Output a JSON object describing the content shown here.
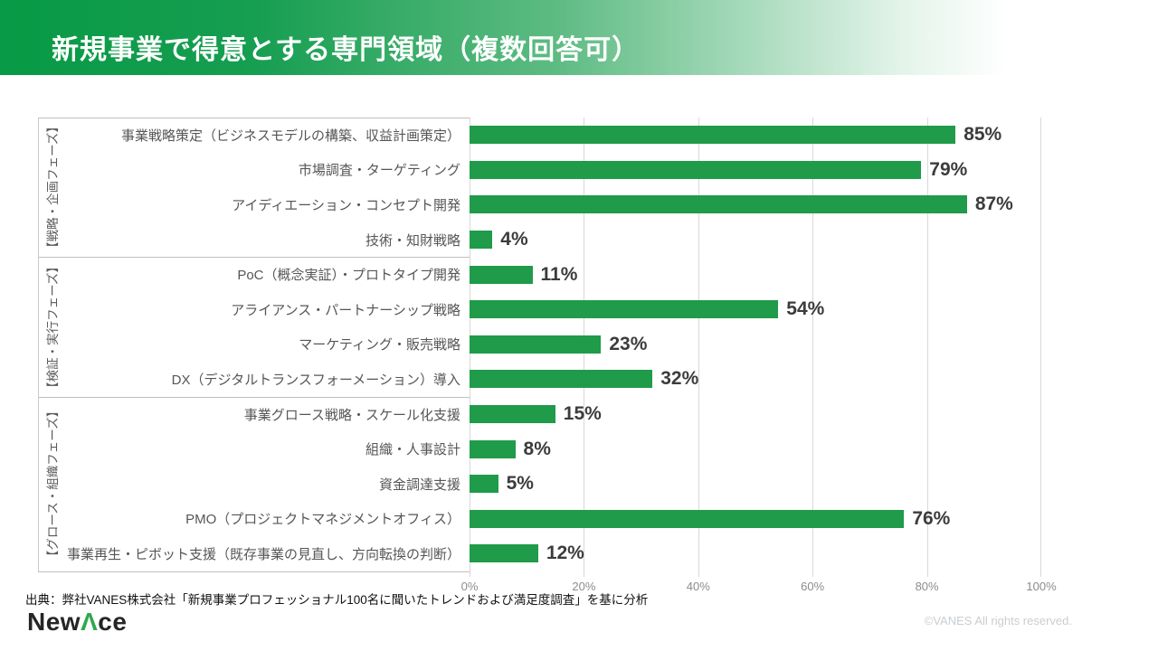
{
  "header": {
    "title": "新規事業で得意とする専門領域（複数回答可）"
  },
  "chart_data": {
    "type": "bar",
    "orientation": "horizontal",
    "title": "新規事業で得意とする専門領域（複数回答可）",
    "unit": "%",
    "xlim": [
      0,
      100
    ],
    "x_ticks": [
      {
        "label": "0%",
        "value": 0
      },
      {
        "label": "20%",
        "value": 20
      },
      {
        "label": "40%",
        "value": 40
      },
      {
        "label": "60%",
        "value": 60
      },
      {
        "label": "80%",
        "value": 80
      },
      {
        "label": "100%",
        "value": 100
      }
    ],
    "grid": true,
    "bar_color": "#1f9b49",
    "groups": [
      {
        "label": "【戦略・企画フェーズ】",
        "items": [
          {
            "label": "事業戦略策定（ビジネスモデルの構築、収益計画策定）",
            "value": 85
          },
          {
            "label": "市場調査・ターゲティング",
            "value": 79
          },
          {
            "label": "アイディエーション・コンセプト開発",
            "value": 87
          },
          {
            "label": "技術・知財戦略",
            "value": 4
          }
        ]
      },
      {
        "label": "【検証・実行フェーズ】",
        "items": [
          {
            "label": "PoC（概念実証）・プロトタイプ開発",
            "value": 11
          },
          {
            "label": "アライアンス・パートナーシップ戦略",
            "value": 54
          },
          {
            "label": "マーケティング・販売戦略",
            "value": 23
          },
          {
            "label": "DX（デジタルトランスフォーメーション）導入",
            "value": 32
          }
        ]
      },
      {
        "label": "【グロース・組織フェーズ】",
        "items": [
          {
            "label": "事業グロース戦略・スケール化支援",
            "value": 15
          },
          {
            "label": "組織・人事設計",
            "value": 8
          },
          {
            "label": "資金調達支援",
            "value": 5
          },
          {
            "label": "PMO（プロジェクトマネジメントオフィス）",
            "value": 76
          },
          {
            "label": "事業再生・ピボット支援（既存事業の見直し、方向転換の判断）",
            "value": 12
          }
        ]
      }
    ]
  },
  "footer": {
    "source": "出典：弊社VANES株式会社「新規事業プロフェッショナル100名に聞いたトレンドおよび満足度調査」を基に分析",
    "logo_pre": "New",
    "logo_a": "Λ",
    "logo_post": "ce",
    "copyright": "©VANES All rights reserved."
  },
  "colors": {
    "header_green": "#089a45",
    "bar_green": "#1f9b49",
    "label_gray": "#565656",
    "gridline_gray": "#d8d8d8"
  }
}
